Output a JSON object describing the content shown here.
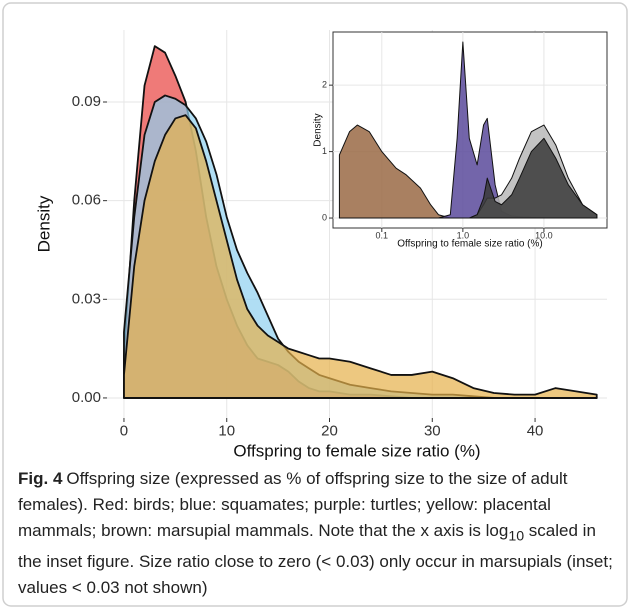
{
  "chart_data": [
    {
      "type": "area",
      "xlabel": "Offspring to female size ratio (%)",
      "ylabel": "Density",
      "x": [
        0,
        1,
        2,
        3,
        4,
        5,
        6,
        7,
        8,
        9,
        10,
        11,
        12,
        13,
        14,
        15,
        16,
        17,
        18,
        19,
        20,
        22,
        24,
        26,
        28,
        30,
        32,
        34,
        36,
        38,
        40,
        42,
        44,
        46
      ],
      "series": [
        {
          "color": "#e8413f",
          "values": [
            0.013,
            0.06,
            0.095,
            0.107,
            0.105,
            0.098,
            0.09,
            0.075,
            0.055,
            0.04,
            0.03,
            0.022,
            0.016,
            0.012,
            0.011,
            0.01,
            0.008,
            0.005,
            0.003,
            0.002,
            0.002,
            0.001,
            0.001,
            0.0005,
            0,
            0,
            0,
            0,
            0,
            0,
            0,
            0,
            0,
            0
          ]
        },
        {
          "color": "#8fd0ef",
          "values": [
            0.02,
            0.055,
            0.08,
            0.09,
            0.092,
            0.091,
            0.089,
            0.085,
            0.078,
            0.068,
            0.055,
            0.045,
            0.038,
            0.032,
            0.025,
            0.018,
            0.014,
            0.011,
            0.009,
            0.007,
            0.006,
            0.004,
            0.003,
            0.002,
            0.0015,
            0.001,
            0.001,
            0.0005,
            0,
            0,
            0,
            0,
            0,
            0
          ]
        },
        {
          "color": "#e6b04a",
          "values": [
            0.007,
            0.04,
            0.06,
            0.072,
            0.08,
            0.085,
            0.086,
            0.082,
            0.072,
            0.06,
            0.048,
            0.036,
            0.027,
            0.022,
            0.019,
            0.017,
            0.015,
            0.014,
            0.013,
            0.012,
            0.012,
            0.011,
            0.009,
            0.007,
            0.007,
            0.008,
            0.006,
            0.003,
            0.0015,
            0.001,
            0.001,
            0.003,
            0.002,
            0.001
          ]
        }
      ],
      "xlim": [
        -1.65,
        47
      ],
      "ylim": [
        -0.0061,
        0.1119
      ],
      "xticks": [
        0,
        10,
        20,
        30,
        40
      ],
      "yticks": [
        {
          "value": 0,
          "label": "0.00"
        },
        0.03,
        0.06,
        0.09
      ],
      "grid": true
    },
    {
      "type": "area",
      "log_x": true,
      "xlabel": "Offspring to female size ratio (%)",
      "ylabel": "Density",
      "x": [
        0.03,
        0.04,
        0.05,
        0.07,
        0.1,
        0.15,
        0.2,
        0.3,
        0.4,
        0.5,
        0.7,
        0.85,
        1,
        1.2,
        1.5,
        1.8,
        2,
        2.5,
        3,
        4,
        5,
        7,
        10,
        14,
        20,
        30,
        45
      ],
      "series": [
        {
          "color": "#9a6a45",
          "values": [
            0.95,
            1.3,
            1.4,
            1.3,
            1.0,
            0.75,
            0.65,
            0.45,
            0.2,
            0.05,
            0,
            0,
            0,
            0,
            0,
            0,
            0,
            0,
            0,
            0,
            0,
            0,
            0,
            0,
            0,
            0,
            0
          ]
        },
        {
          "color": "#5b4a9b",
          "values": [
            0,
            0,
            0,
            0,
            0,
            0,
            0,
            0,
            0,
            0,
            0.05,
            1.2,
            2.65,
            1.2,
            0.8,
            1.4,
            1.5,
            0.5,
            0.1,
            0.03,
            0.02,
            0.01,
            0,
            0,
            0,
            0,
            0
          ]
        },
        {
          "color": "#b8b8b8",
          "values": [
            0,
            0,
            0,
            0,
            0,
            0,
            0,
            0,
            0,
            0,
            0,
            0,
            0,
            0,
            0.05,
            0.2,
            0.3,
            0.3,
            0.35,
            0.6,
            0.9,
            1.3,
            1.4,
            1.1,
            0.6,
            0.2,
            0.05
          ]
        },
        {
          "color": "#3a3a3a",
          "values": [
            0,
            0,
            0,
            0,
            0,
            0,
            0,
            0,
            0,
            0,
            0,
            0,
            0,
            0,
            0.05,
            0.3,
            0.6,
            0.25,
            0.2,
            0.35,
            0.6,
            1.0,
            1.2,
            0.9,
            0.5,
            0.2,
            0.05
          ]
        }
      ],
      "xlim": [
        0.025,
        60
      ],
      "ylim": [
        -0.15,
        2.8
      ],
      "xticks": [
        0.1,
        {
          "value": 1,
          "label": "1.0"
        },
        {
          "value": 10,
          "label": "10.0"
        }
      ],
      "yticks": [
        0,
        1,
        2
      ],
      "grid": true
    }
  ],
  "caption": {
    "label": "Fig. 4",
    "text_before": "Offspring size (expressed as % of offspring size to the size of adult females). Red: birds; blue: squamates; purple: turtles; yellow: placental mammals; brown: marsupial mammals. Note that the x axis is log",
    "sub": "10",
    "text_after": " scaled in the inset figure. Size ratio close to zero (< 0.03) only occur in marsupials (inset; values < 0.03 not shown)"
  }
}
